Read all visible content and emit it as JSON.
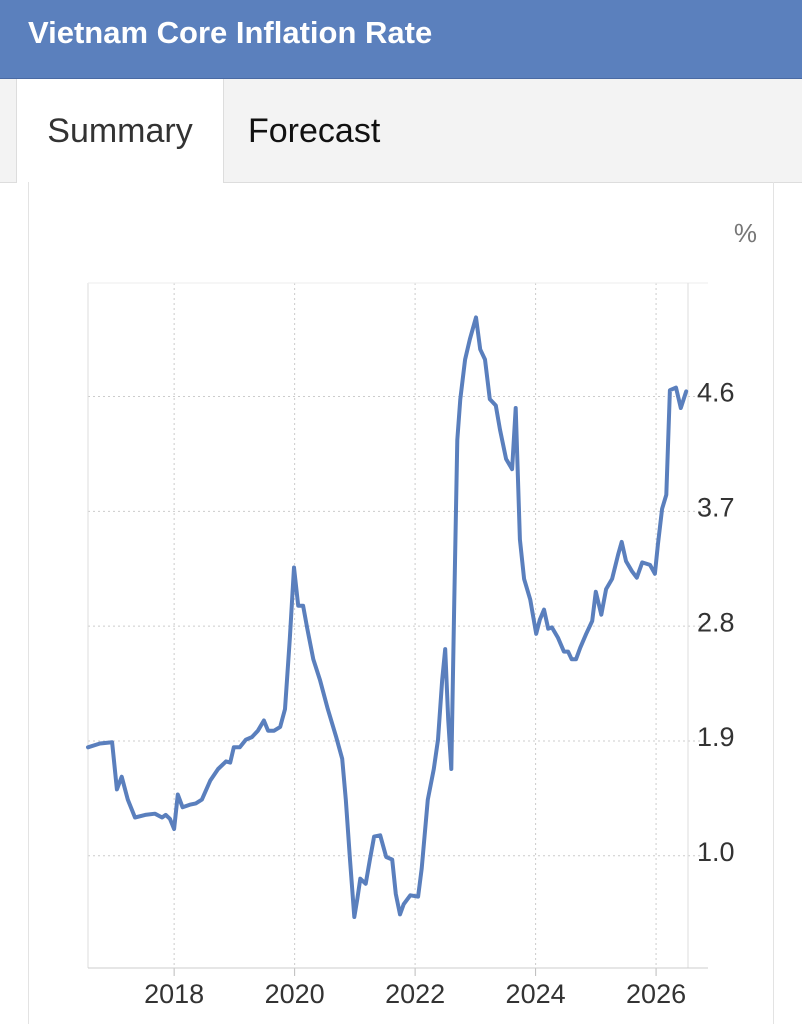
{
  "header": {
    "title": "Vietnam Core Inflation Rate"
  },
  "tabs": [
    "Summary",
    "Forecast"
  ],
  "chart_data": {
    "type": "line",
    "unit": "%",
    "x": [
      2016.57,
      2016.77,
      2016.97,
      2017.05,
      2017.13,
      2017.23,
      2017.35,
      2017.52,
      2017.68,
      2017.8,
      2017.86,
      2017.93,
      2018.0,
      2018.06,
      2018.14,
      2018.26,
      2018.36,
      2018.46,
      2018.6,
      2018.73,
      2018.86,
      2018.93,
      2018.99,
      2019.09,
      2019.19,
      2019.29,
      2019.39,
      2019.49,
      2019.56,
      2019.66,
      2019.76,
      2019.84,
      2019.92,
      2019.99,
      2020.06,
      2020.14,
      2020.21,
      2020.31,
      2020.42,
      2020.55,
      2020.69,
      2020.79,
      2020.85,
      2020.92,
      2020.99,
      2021.04,
      2021.09,
      2021.18,
      2021.25,
      2021.32,
      2021.42,
      2021.52,
      2021.62,
      2021.68,
      2021.75,
      2021.81,
      2021.92,
      2022.05,
      2022.11,
      2022.21,
      2022.31,
      2022.38,
      2022.45,
      2022.5,
      2022.55,
      2022.6,
      2022.65,
      2022.7,
      2022.75,
      2022.83,
      2022.91,
      2023.01,
      2023.08,
      2023.16,
      2023.24,
      2023.34,
      2023.41,
      2023.51,
      2023.61,
      2023.67,
      2023.74,
      2023.81,
      2023.91,
      2024.01,
      2024.07,
      2024.14,
      2024.21,
      2024.27,
      2024.37,
      2024.47,
      2024.54,
      2024.6,
      2024.67,
      2024.74,
      2024.84,
      2024.94,
      2025.0,
      2025.09,
      2025.17,
      2025.27,
      2025.37,
      2025.43,
      2025.5,
      2025.6,
      2025.68,
      2025.77,
      2025.9,
      2025.98,
      2026.03,
      2026.1,
      2026.17,
      2026.23,
      2026.33,
      2026.41,
      2026.5
    ],
    "series": [
      {
        "color": "#5a7fbd",
        "values": [
          1.85,
          1.88,
          1.89,
          1.52,
          1.62,
          1.44,
          1.3,
          1.32,
          1.33,
          1.3,
          1.32,
          1.29,
          1.21,
          1.48,
          1.38,
          1.4,
          1.41,
          1.44,
          1.59,
          1.68,
          1.74,
          1.73,
          1.85,
          1.85,
          1.91,
          1.93,
          1.98,
          2.06,
          1.98,
          1.98,
          2.01,
          2.15,
          2.7,
          3.26,
          2.96,
          2.96,
          2.78,
          2.54,
          2.38,
          2.15,
          1.93,
          1.76,
          1.44,
          0.97,
          0.52,
          0.66,
          0.82,
          0.78,
          0.97,
          1.15,
          1.16,
          0.99,
          0.97,
          0.7,
          0.54,
          0.62,
          0.69,
          0.68,
          0.9,
          1.44,
          1.68,
          1.91,
          2.38,
          2.62,
          2.07,
          1.68,
          3.01,
          4.26,
          4.58,
          4.89,
          5.05,
          5.22,
          4.97,
          4.89,
          4.58,
          4.53,
          4.34,
          4.11,
          4.03,
          4.51,
          3.48,
          3.17,
          3.01,
          2.74,
          2.85,
          2.93,
          2.78,
          2.79,
          2.71,
          2.6,
          2.6,
          2.54,
          2.54,
          2.63,
          2.74,
          2.84,
          3.07,
          2.89,
          3.09,
          3.17,
          3.36,
          3.46,
          3.31,
          3.23,
          3.18,
          3.3,
          3.28,
          3.21,
          3.44,
          3.72,
          3.83,
          4.65,
          4.67,
          4.51,
          4.64
        ]
      }
    ],
    "xlim": [
      2016.57,
      2026.53
    ],
    "ylim": [
      0.12,
      5.49
    ],
    "xticks": [
      2018,
      2020,
      2022,
      2024,
      2026
    ],
    "yticks": [
      {
        "value": 1,
        "label": "1.0"
      },
      1.9,
      2.8,
      3.7,
      4.6
    ],
    "grid": true
  }
}
